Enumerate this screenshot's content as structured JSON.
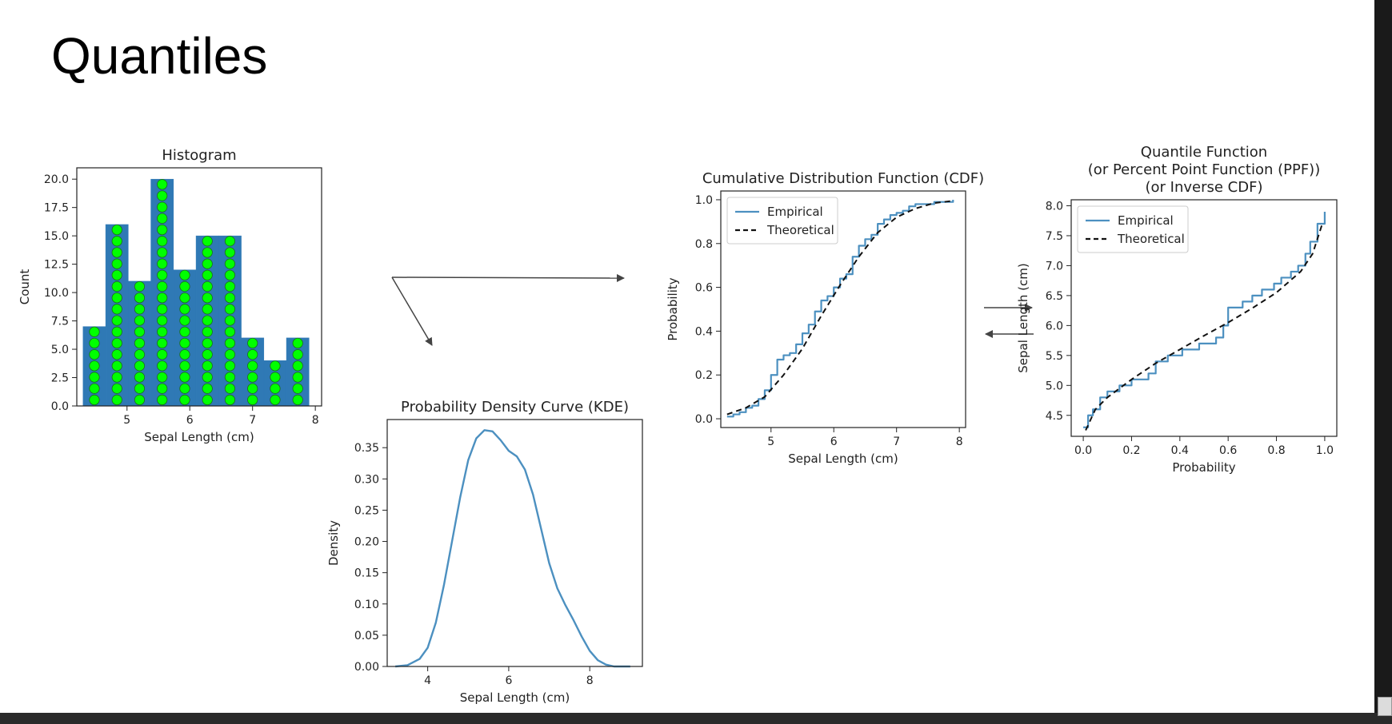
{
  "slide": {
    "title": "Quantiles"
  },
  "colors": {
    "bar": "#2f79b5",
    "dot": "#00ff00",
    "line": "#4c90c0",
    "theoretical": "#111111",
    "arrow": "#444444"
  },
  "chart_data": [
    {
      "id": "hist",
      "type": "bar",
      "title": "Histogram",
      "xlabel": "Sepal Length (cm)",
      "ylabel": "Count",
      "xlim": [
        4.2,
        8.1
      ],
      "ylim": [
        0,
        21
      ],
      "xticks": [
        5,
        6,
        7,
        8
      ],
      "yticks": [
        0.0,
        2.5,
        5.0,
        7.5,
        10.0,
        12.5,
        15.0,
        17.5,
        20.0
      ],
      "ytick_decimals": 1,
      "bins": [
        [
          4.3,
          4.66,
          7
        ],
        [
          4.66,
          5.02,
          16
        ],
        [
          5.02,
          5.38,
          11
        ],
        [
          5.38,
          5.74,
          20
        ],
        [
          5.74,
          6.1,
          12
        ],
        [
          6.1,
          6.46,
          15
        ],
        [
          6.46,
          6.82,
          15
        ],
        [
          6.82,
          7.18,
          6
        ],
        [
          7.18,
          7.54,
          4
        ],
        [
          7.54,
          7.9,
          6
        ]
      ]
    },
    {
      "id": "kde",
      "type": "line",
      "title": "Probability Density Curve (KDE)",
      "xlabel": "Sepal Length (cm)",
      "ylabel": "Density",
      "xlim": [
        3.0,
        9.3
      ],
      "ylim": [
        0,
        0.395
      ],
      "xticks": [
        4,
        6,
        8
      ],
      "yticks": [
        0.0,
        0.05,
        0.1,
        0.15,
        0.2,
        0.25,
        0.3,
        0.35
      ],
      "ytick_decimals": 2,
      "x": [
        3.2,
        3.5,
        3.8,
        4.0,
        4.2,
        4.4,
        4.6,
        4.8,
        5.0,
        5.2,
        5.4,
        5.6,
        5.8,
        6.0,
        6.2,
        6.4,
        6.6,
        6.8,
        7.0,
        7.2,
        7.4,
        7.6,
        7.8,
        8.0,
        8.2,
        8.4,
        8.6,
        8.8,
        9.0
      ],
      "y": [
        0.0,
        0.002,
        0.012,
        0.03,
        0.07,
        0.13,
        0.2,
        0.27,
        0.33,
        0.365,
        0.378,
        0.376,
        0.362,
        0.345,
        0.336,
        0.315,
        0.275,
        0.22,
        0.165,
        0.125,
        0.098,
        0.074,
        0.048,
        0.025,
        0.01,
        0.003,
        0.0,
        0.0,
        0.0
      ]
    },
    {
      "id": "cdf",
      "type": "line",
      "title": "Cumulative Distribution Function (CDF)",
      "xlabel": "Sepal Length (cm)",
      "ylabel": "Probability",
      "xlim": [
        4.2,
        8.1
      ],
      "ylim": [
        -0.04,
        1.04
      ],
      "xticks": [
        5,
        6,
        7,
        8
      ],
      "yticks": [
        0.0,
        0.2,
        0.4,
        0.6,
        0.8,
        1.0
      ],
      "ytick_decimals": 1,
      "legend": {
        "position": "top-left",
        "entries": [
          "Empirical",
          "Theoretical"
        ]
      },
      "series": [
        {
          "name": "Empirical",
          "style": "step",
          "x": [
            4.3,
            4.4,
            4.5,
            4.6,
            4.7,
            4.8,
            4.9,
            5.0,
            5.1,
            5.2,
            5.3,
            5.4,
            5.5,
            5.6,
            5.7,
            5.8,
            5.9,
            6.0,
            6.1,
            6.2,
            6.3,
            6.4,
            6.5,
            6.6,
            6.7,
            6.8,
            6.9,
            7.0,
            7.1,
            7.2,
            7.3,
            7.4,
            7.6,
            7.7,
            7.9
          ],
          "y": [
            0.01,
            0.02,
            0.03,
            0.05,
            0.06,
            0.09,
            0.13,
            0.2,
            0.27,
            0.29,
            0.3,
            0.34,
            0.39,
            0.43,
            0.49,
            0.54,
            0.56,
            0.6,
            0.64,
            0.66,
            0.74,
            0.79,
            0.82,
            0.84,
            0.89,
            0.91,
            0.93,
            0.94,
            0.95,
            0.97,
            0.98,
            0.98,
            0.99,
            0.99,
            1.0
          ]
        },
        {
          "name": "Theoretical",
          "style": "dashed",
          "x": [
            4.3,
            4.6,
            4.9,
            5.2,
            5.5,
            5.8,
            6.1,
            6.4,
            6.7,
            7.0,
            7.3,
            7.6,
            7.9
          ],
          "y": [
            0.02,
            0.05,
            0.1,
            0.2,
            0.32,
            0.47,
            0.61,
            0.74,
            0.85,
            0.92,
            0.96,
            0.985,
            0.995
          ]
        }
      ]
    },
    {
      "id": "ppf",
      "type": "line",
      "title": [
        "Quantile Function",
        "(or Percent Point Function (PPF))",
        "(or Inverse CDF)"
      ],
      "xlabel": "Probability",
      "ylabel": "Sepal Length (cm)",
      "xlim": [
        -0.05,
        1.05
      ],
      "ylim": [
        4.15,
        8.1
      ],
      "xticks": [
        0.0,
        0.2,
        0.4,
        0.6,
        0.8,
        1.0
      ],
      "yticks": [
        4.5,
        5.0,
        5.5,
        6.0,
        6.5,
        7.0,
        7.5,
        8.0
      ],
      "ytick_decimals": 1,
      "legend": {
        "position": "top-left",
        "entries": [
          "Empirical",
          "Theoretical"
        ]
      },
      "series": [
        {
          "name": "Empirical",
          "style": "step",
          "x": [
            0.0,
            0.02,
            0.04,
            0.07,
            0.1,
            0.15,
            0.2,
            0.27,
            0.3,
            0.35,
            0.41,
            0.48,
            0.55,
            0.58,
            0.6,
            0.66,
            0.7,
            0.74,
            0.79,
            0.82,
            0.86,
            0.89,
            0.92,
            0.94,
            0.97,
            1.0
          ],
          "y": [
            4.3,
            4.5,
            4.6,
            4.8,
            4.9,
            5.0,
            5.1,
            5.2,
            5.4,
            5.5,
            5.6,
            5.7,
            5.8,
            6.0,
            6.3,
            6.4,
            6.5,
            6.6,
            6.7,
            6.8,
            6.9,
            7.0,
            7.2,
            7.4,
            7.7,
            7.9
          ]
        },
        {
          "name": "Theoretical",
          "style": "dashed",
          "x": [
            0.01,
            0.05,
            0.1,
            0.2,
            0.3,
            0.4,
            0.5,
            0.6,
            0.7,
            0.8,
            0.9,
            0.95,
            0.99
          ],
          "y": [
            4.25,
            4.6,
            4.8,
            5.1,
            5.37,
            5.6,
            5.83,
            6.05,
            6.29,
            6.55,
            6.9,
            7.2,
            7.7
          ]
        }
      ]
    }
  ]
}
